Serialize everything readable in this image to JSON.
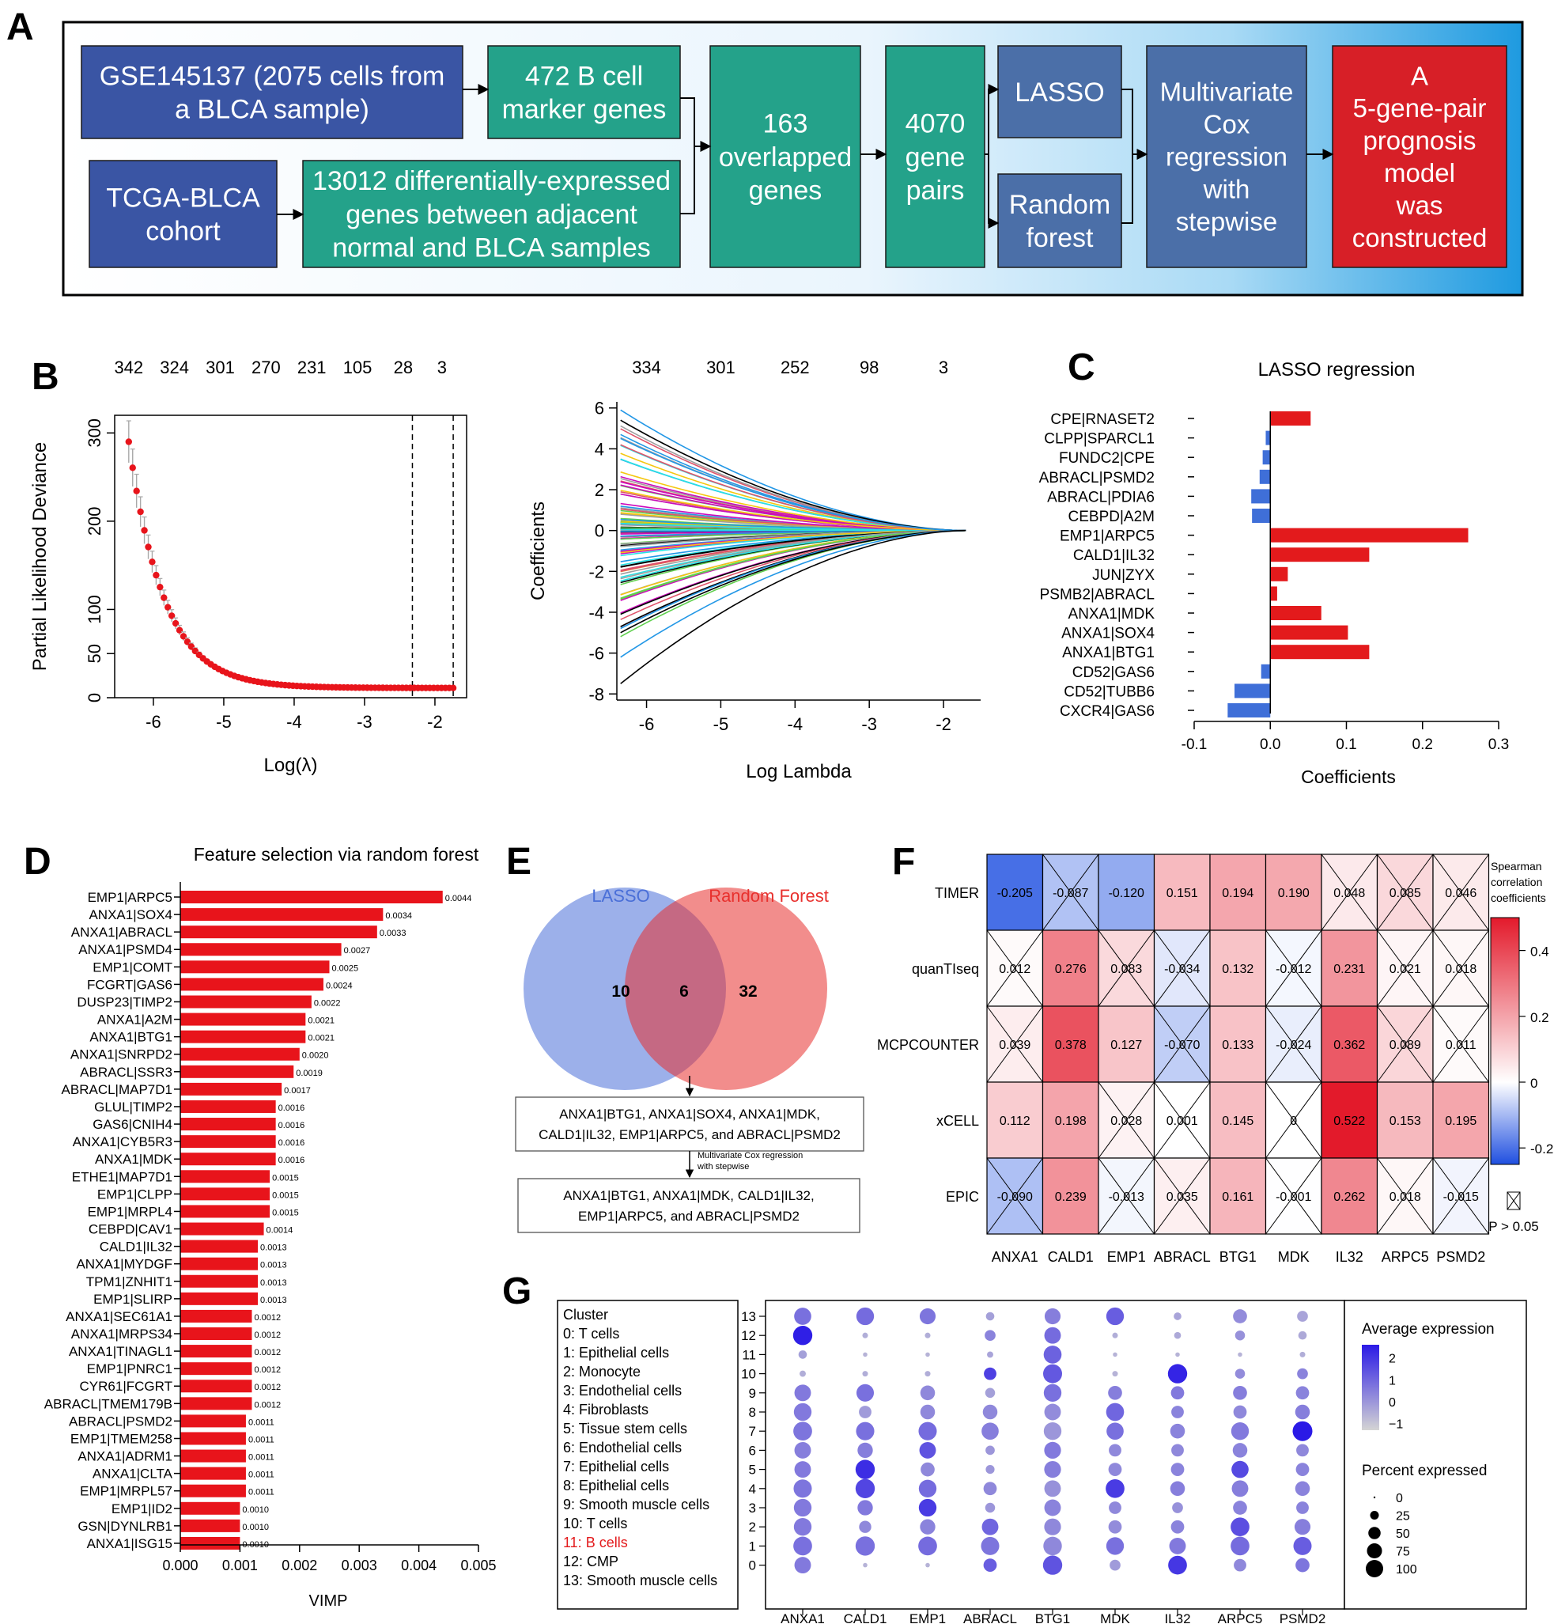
{
  "panel_labels": [
    "A",
    "B",
    "C",
    "D",
    "E",
    "F",
    "G"
  ],
  "flow": {
    "box1": [
      "GSE145137 (2075 cells from",
      "a BLCA sample)"
    ],
    "box2": [
      "472 B cell",
      "marker genes"
    ],
    "box3": [
      "TCGA-BLCA",
      "cohort"
    ],
    "box4": [
      "13012 differentially-expressed",
      "genes between adjacent",
      "normal and BLCA samples"
    ],
    "box5": [
      "163",
      "overlapped",
      "genes"
    ],
    "box6": [
      "4070",
      "gene",
      "pairs"
    ],
    "box7": [
      "LASSO"
    ],
    "box8": [
      "Random",
      "forest"
    ],
    "box9": [
      "Multivariate",
      "Cox",
      "regression",
      "with",
      "stepwise"
    ],
    "box10": [
      "A",
      "5-gene-pair",
      "prognosis",
      "model",
      "was",
      "constructed"
    ],
    "colors": {
      "navy": "#3a55a4",
      "teal": "#24a28a",
      "slate": "#4b6fa8",
      "red": "#d71f27"
    }
  },
  "chart_data": [
    {
      "id": "B1",
      "type": "scatter",
      "xlabel": "Log(λ)",
      "ylabel": "Partial Likelihood Deviance",
      "top_labels": [
        "342",
        "324",
        "301",
        "270",
        "231",
        "105",
        "28",
        "3"
      ],
      "top_positions": [
        -6.35,
        -5.7,
        -5.05,
        -4.4,
        -3.75,
        -3.1,
        -2.45,
        -1.9
      ],
      "xlim": [
        -6.55,
        -1.55
      ],
      "ylim": [
        0,
        320
      ],
      "xticks": [
        -6,
        -5,
        -4,
        -3,
        -2
      ],
      "yticks": [
        0,
        50,
        100,
        200,
        300
      ],
      "vlines": [
        -2.32,
        -1.74
      ],
      "curve": {
        "x_start": -6.35,
        "x_end": -1.74,
        "y_start": 290,
        "y_floor": 11,
        "x_flat": -3.2,
        "n_points": 84
      },
      "point_color": "#e8141b"
    },
    {
      "id": "B2",
      "type": "line",
      "xlabel": "Log Lambda",
      "ylabel": "Coefficients",
      "top_labels": [
        "334",
        "301",
        "252",
        "98",
        "3"
      ],
      "top_positions": [
        -6,
        -5,
        -4,
        -3,
        -2
      ],
      "xlim": [
        -6.4,
        -1.5
      ],
      "ylim": [
        -8.3,
        6.3
      ],
      "xticks": [
        -6,
        -5,
        -4,
        -3,
        -2
      ],
      "yticks": [
        -8,
        -6,
        -4,
        -2,
        0,
        2,
        4,
        6
      ],
      "x_start": -6.35,
      "x_end": -1.7,
      "n_paths": 120,
      "extremes": [
        5.9,
        5.4,
        4.7,
        -5.0,
        -6.2,
        -7.5
      ]
    },
    {
      "id": "C",
      "type": "bar",
      "title": "LASSO regression",
      "xlabel": "Coefficients",
      "categories": [
        "CPE|RNASET2",
        "CLPP|SPARCL1",
        "FUNDC2|CPE",
        "ABRACL|PSMD2",
        "ABRACL|PDIA6",
        "CEBPD|A2M",
        "EMP1|ARPC5",
        "CALD1|IL32",
        "JUN|ZYX",
        "PSMB2|ABRACL",
        "ANXA1|MDK",
        "ANXA1|SOX4",
        "ANXA1|BTG1",
        "CD52|GAS6",
        "CD52|TUBB6",
        "CXCR4|GAS6"
      ],
      "values": [
        0.053,
        -0.006,
        -0.01,
        -0.014,
        -0.025,
        -0.024,
        0.26,
        0.13,
        0.023,
        0.009,
        0.067,
        0.102,
        0.13,
        -0.012,
        -0.047,
        -0.056
      ],
      "xlim": [
        -0.1,
        0.3
      ],
      "xticks": [
        -0.1,
        0.0,
        0.1,
        0.2,
        0.3
      ],
      "xtick_labels": [
        "-0.1",
        "0.0",
        "0.1",
        "0.2",
        "0.3"
      ],
      "pos_color": "#e31a1c",
      "neg_color": "#3f6fd8"
    },
    {
      "id": "D",
      "type": "bar",
      "title": "Feature selection via random forest",
      "xlabel": "VIMP",
      "categories": [
        "EMP1|ARPC5",
        "ANXA1|SOX4",
        "ANXA1|ABRACL",
        "ANXA1|PSMD4",
        "EMP1|COMT",
        "FCGRT|GAS6",
        "DUSP23|TIMP2",
        "ANXA1|A2M",
        "ANXA1|BTG1",
        "ANXA1|SNRPD2",
        "ABRACL|SSR3",
        "ABRACL|MAP7D1",
        "GLUL|TIMP2",
        "GAS6|CNIH4",
        "ANXA1|CYB5R3",
        "ANXA1|MDK",
        "ETHE1|MAP7D1",
        "EMP1|CLPP",
        "EMP1|MRPL4",
        "CEBPD|CAV1",
        "CALD1|IL32",
        "ANXA1|MYDGF",
        "TPM1|ZNHIT1",
        "EMP1|SLIRP",
        "ANXA1|SEC61A1",
        "ANXA1|MRPS34",
        "ANXA1|TINAGL1",
        "EMP1|PNRC1",
        "CYR61|FCGRT",
        "ABRACL|TMEM179B",
        "ABRACL|PSMD2",
        "EMP1|TMEM258",
        "ANXA1|ADRM1",
        "ANXA1|CLTA",
        "EMP1|MRPL57",
        "EMP1|ID2",
        "GSN|DYNLRB1",
        "ANXA1|ISG15"
      ],
      "values": [
        0.0044,
        0.0034,
        0.0033,
        0.0027,
        0.0025,
        0.0024,
        0.0022,
        0.0021,
        0.0021,
        0.002,
        0.0019,
        0.0017,
        0.0016,
        0.0016,
        0.0016,
        0.0016,
        0.0015,
        0.0015,
        0.0015,
        0.0014,
        0.0013,
        0.0013,
        0.0013,
        0.0013,
        0.0012,
        0.0012,
        0.0012,
        0.0012,
        0.0012,
        0.0012,
        0.0011,
        0.0011,
        0.0011,
        0.0011,
        0.0011,
        0.001,
        0.001,
        0.001
      ],
      "value_labels": [
        "0.0044",
        "0.0034",
        "0.0033",
        "0.0027",
        "0.0025",
        "0.0024",
        "0.0022",
        "0.0021",
        "0.0021",
        "0.0020",
        "0.0019",
        "0.0017",
        "0.0016",
        "0.0016",
        "0.0016",
        "0.0016",
        "0.0015",
        "0.0015",
        "0.0015",
        "0.0014",
        "0.0013",
        "0.0013",
        "0.0013",
        "0.0013",
        "0.0012",
        "0.0012",
        "0.0012",
        "0.0012",
        "0.0012",
        "0.0012",
        "0.0011",
        "0.0011",
        "0.0011",
        "0.0011",
        "0.0011",
        "0.0010",
        "0.0010",
        "0.0010"
      ],
      "xlim": [
        0,
        0.005
      ],
      "xticks": [
        0,
        0.001,
        0.002,
        0.003,
        0.004,
        0.005
      ],
      "xtick_labels": [
        "0.000",
        "0.001",
        "0.002",
        "0.003",
        "0.004",
        "0.005"
      ],
      "bar_color": "#e8141b"
    },
    {
      "id": "E",
      "type": "venn",
      "sets": [
        {
          "name": "LASSO",
          "only": 10,
          "color": "#4a6fd8"
        },
        {
          "name": "Random Forest",
          "only": 32,
          "color": "#e8302d"
        }
      ],
      "intersection": 6,
      "box1": [
        "ANXA1|BTG1, ANXA1|SOX4, ANXA1|MDK,",
        "CALD1|IL32, EMP1|ARPC5, and ABRACL|PSMD2"
      ],
      "arrow_label": [
        "Multivariate Cox regression",
        "with stepwise"
      ],
      "box2": [
        "ANXA1|BTG1, ANXA1|MDK, CALD1|IL32,",
        "EMP1|ARPC5, and ABRACL|PSMD2"
      ]
    },
    {
      "id": "F",
      "type": "heatmap",
      "rows": [
        "TIMER",
        "quanTIseq",
        "MCPCOUNTER",
        "xCELL",
        "EPIC"
      ],
      "cols": [
        "ANXA1",
        "CALD1",
        "EMP1",
        "ABRACL",
        "BTG1",
        "MDK",
        "IL32",
        "ARPC5",
        "PSMD2"
      ],
      "values": [
        [
          -0.205,
          -0.087,
          -0.12,
          0.151,
          0.194,
          0.19,
          0.048,
          0.085,
          0.046
        ],
        [
          0.012,
          0.276,
          0.083,
          -0.034,
          0.132,
          -0.012,
          0.231,
          0.021,
          0.018
        ],
        [
          0.039,
          0.378,
          0.127,
          -0.07,
          0.133,
          -0.024,
          0.362,
          0.089,
          0.011
        ],
        [
          0.112,
          0.198,
          0.028,
          0.001,
          0.145,
          0,
          0.522,
          0.153,
          0.195
        ],
        [
          -0.09,
          0.239,
          -0.013,
          0.035,
          0.161,
          -0.001,
          0.262,
          0.018,
          -0.015
        ]
      ],
      "labels": [
        [
          "-0.205",
          "-0.087",
          "-0.120",
          "0.151",
          "0.194",
          "0.190",
          "0.048",
          "0.085",
          "0.046"
        ],
        [
          "0.012",
          "0.276",
          "0.083",
          "-0.034",
          "0.132",
          "-0.012",
          "0.231",
          "0.021",
          "0.018"
        ],
        [
          "0.039",
          "0.378",
          "0.127",
          "-0.070",
          "0.133",
          "-0.024",
          "0.362",
          "0.089",
          "0.011"
        ],
        [
          "0.112",
          "0.198",
          "0.028",
          "0.001",
          "0.145",
          "0",
          "0.522",
          "0.153",
          "0.195"
        ],
        [
          "-0.090",
          "0.239",
          "-0.013",
          "0.035",
          "0.161",
          "-0.001",
          "0.262",
          "0.018",
          "-0.015"
        ]
      ],
      "not_significant": [
        [
          0,
          1,
          0,
          0,
          0,
          0,
          1,
          1,
          1
        ],
        [
          1,
          0,
          1,
          1,
          0,
          1,
          0,
          1,
          1
        ],
        [
          1,
          0,
          0,
          1,
          0,
          1,
          0,
          1,
          1
        ],
        [
          0,
          0,
          1,
          1,
          0,
          1,
          0,
          0,
          0
        ],
        [
          1,
          0,
          1,
          1,
          0,
          1,
          0,
          1,
          1
        ]
      ],
      "legend_title": [
        "Spearman",
        "correlation",
        "coefficients"
      ],
      "legend_ticks": [
        0.4,
        0.2,
        0,
        -0.2
      ],
      "legend_tick_labels": [
        "0.4",
        "0.2",
        "0",
        "-0.2"
      ],
      "scale_range": [
        -0.25,
        0.5
      ],
      "ns_label": "P > 0.05",
      "low_color": "#1f4fe0",
      "high_color": "#e31a2b"
    },
    {
      "id": "G",
      "type": "dot",
      "legend_cluster_title": "Cluster",
      "clusters": [
        "0: T cells",
        "1: Epithelial cells",
        "2: Monocyte",
        "3: Endothelial cells",
        "4: Fibroblasts",
        "5: Tissue stem cells",
        "6: Endothelial cells",
        "7: Epithelial cells",
        "8: Epithelial cells",
        "9: Smooth muscle cells",
        "10: T cells",
        "11: B cells",
        "12: CMP",
        "13: Smooth muscle cells"
      ],
      "highlight_cluster": 11,
      "rows": [
        "13",
        "12",
        "11",
        "10",
        "9",
        "8",
        "7",
        "6",
        "5",
        "4",
        "3",
        "2",
        "1",
        "0"
      ],
      "cols": [
        "ANXA1",
        "CALD1",
        "EMP1",
        "ABRACL",
        "BTG1",
        "MDK",
        "IL32",
        "ARPC5",
        "PSMD2"
      ],
      "avg_expression": [
        [
          0.8,
          0.9,
          0.7,
          -0.2,
          0.5,
          1.2,
          -0.3,
          0.2,
          -0.3
        ],
        [
          2.5,
          -0.5,
          -0.5,
          0.4,
          0.9,
          -0.5,
          -0.4,
          0.1,
          -0.4
        ],
        [
          -0.2,
          -0.6,
          -0.6,
          -0.3,
          1.1,
          -0.6,
          -0.6,
          -0.6,
          -0.5
        ],
        [
          -0.5,
          -0.5,
          -0.5,
          1.8,
          1.3,
          -0.6,
          2.4,
          0.2,
          0.4
        ],
        [
          0.6,
          0.8,
          0.3,
          -0.2,
          0.8,
          0.5,
          0.6,
          0.5,
          0.4
        ],
        [
          0.6,
          -0.1,
          0.3,
          0.3,
          0.2,
          1.0,
          0.4,
          0.3,
          0.5
        ],
        [
          0.7,
          0.8,
          0.9,
          0.5,
          0.0,
          0.8,
          0.4,
          0.6,
          2.6
        ],
        [
          0.5,
          0.5,
          1.4,
          0.0,
          0.6,
          0.3,
          0.3,
          0.4,
          0.3
        ],
        [
          0.6,
          2.2,
          0.3,
          0.0,
          0.5,
          0.3,
          0.4,
          1.6,
          0.4
        ],
        [
          0.7,
          1.7,
          0.9,
          0.3,
          0.1,
          1.9,
          0.5,
          0.5,
          0.4
        ],
        [
          0.6,
          0.6,
          1.9,
          0.0,
          0.4,
          0.3,
          0.1,
          0.4,
          0.4
        ],
        [
          0.6,
          0.3,
          0.4,
          1.0,
          0.3,
          0.2,
          0.4,
          1.5,
          0.5
        ],
        [
          0.8,
          0.8,
          0.9,
          0.7,
          0.3,
          0.8,
          0.6,
          0.9,
          1.2
        ],
        [
          0.6,
          -0.6,
          -0.6,
          1.2,
          1.4,
          -0.1,
          2.0,
          0.3,
          0.7
        ]
      ],
      "pct_expressed": [
        [
          75,
          80,
          65,
          18,
          65,
          80,
          15,
          50,
          30
        ],
        [
          95,
          8,
          8,
          30,
          70,
          8,
          12,
          25,
          18
        ],
        [
          18,
          5,
          5,
          10,
          82,
          5,
          5,
          5,
          8
        ],
        [
          10,
          8,
          8,
          40,
          92,
          8,
          95,
          25,
          30
        ],
        [
          70,
          78,
          55,
          25,
          80,
          50,
          45,
          50,
          45
        ],
        [
          80,
          40,
          55,
          55,
          70,
          82,
          40,
          45,
          55
        ],
        [
          90,
          85,
          85,
          75,
          80,
          75,
          55,
          80,
          100
        ],
        [
          70,
          60,
          70,
          22,
          72,
          40,
          40,
          55,
          40
        ],
        [
          70,
          95,
          50,
          20,
          72,
          45,
          45,
          75,
          45
        ],
        [
          85,
          95,
          80,
          45,
          70,
          90,
          55,
          70,
          55
        ],
        [
          80,
          60,
          80,
          25,
          70,
          40,
          30,
          50,
          40
        ],
        [
          80,
          38,
          60,
          70,
          72,
          45,
          45,
          90,
          65
        ],
        [
          90,
          95,
          90,
          85,
          88,
          80,
          70,
          90,
          85
        ],
        [
          70,
          5,
          5,
          45,
          95,
          30,
          90,
          40,
          50
        ]
      ],
      "legend_expr_title": "Average expression",
      "legend_expr_ticks": [
        2,
        1,
        0,
        -1
      ],
      "legend_expr_labels": [
        "2",
        "1",
        "0",
        "−1"
      ],
      "legend_pct_title": "Percent expressed",
      "legend_pct_values": [
        0,
        25,
        50,
        75,
        100
      ],
      "legend_pct_labels": [
        "0",
        "25",
        "50",
        "75",
        "100"
      ],
      "low_color": "#d4d4d4",
      "high_color": "#2b1ae6"
    }
  ]
}
